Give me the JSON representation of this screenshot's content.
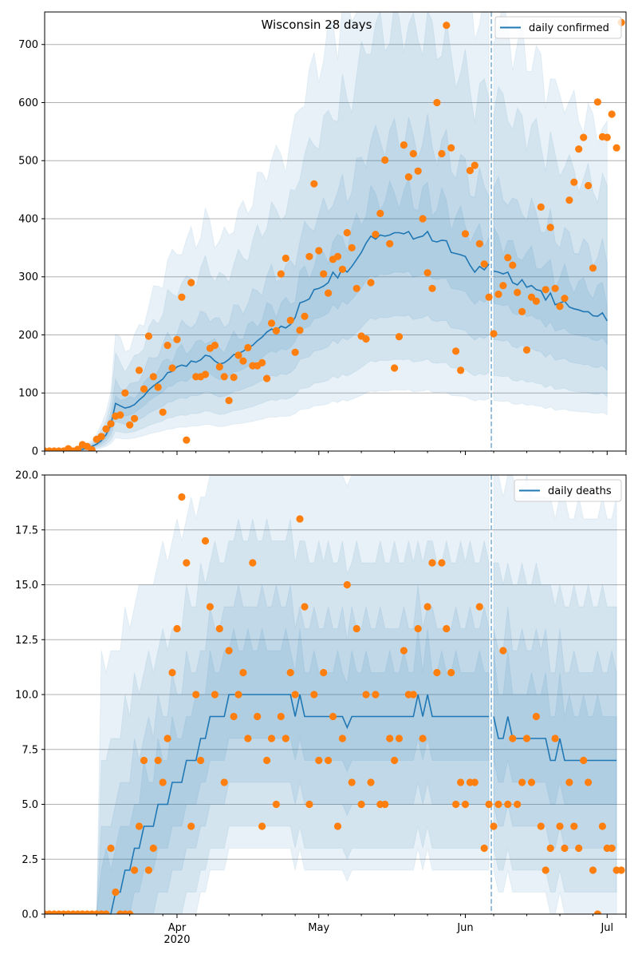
{
  "chart_data": [
    {
      "type": "line",
      "title": "Wisconsin 28 days",
      "legend": [
        "daily confirmed"
      ],
      "legend_position": "top-right",
      "xlabel": "",
      "ylabel": "",
      "ylim": [
        0,
        756
      ],
      "yticks": [
        0,
        100,
        200,
        300,
        400,
        500,
        600,
        700
      ],
      "ytick_labels": [
        "0",
        "100",
        "200",
        "300",
        "400",
        "500",
        "600",
        "700"
      ],
      "grid": "y",
      "start_date": "2020-03-04",
      "forecast_start_day": 95,
      "observed": [
        0,
        0,
        0,
        0,
        0,
        4,
        0,
        3,
        11,
        8,
        2,
        20,
        25,
        38,
        47,
        60,
        62,
        100,
        45,
        56,
        139,
        107,
        198,
        128,
        110,
        67,
        182,
        143,
        192,
        265,
        19,
        290,
        128,
        128,
        132,
        177,
        182,
        145,
        128,
        87,
        127,
        165,
        155,
        178,
        147,
        147,
        152,
        125,
        220,
        207,
        305,
        332,
        225,
        170,
        208,
        232,
        335,
        460,
        345,
        305,
        272,
        330,
        335,
        313,
        376,
        350,
        280,
        198,
        193,
        290,
        373,
        409,
        501,
        357,
        143,
        197,
        527,
        472,
        512,
        482,
        400,
        307,
        280,
        600,
        512,
        733,
        522,
        172,
        139,
        374,
        483,
        492,
        357,
        322,
        265,
        202,
        270,
        285,
        333,
        320,
        273,
        240,
        174,
        265,
        258,
        420,
        278,
        385,
        280,
        249,
        263,
        432,
        463,
        520,
        540,
        457,
        315,
        601,
        541,
        540,
        580,
        522,
        738
      ],
      "median": [
        2,
        1,
        0,
        0,
        0,
        1,
        1,
        2,
        3,
        5,
        8,
        12,
        18,
        28,
        45,
        82,
        78,
        74,
        76,
        80,
        88,
        95,
        105,
        112,
        118,
        124,
        135,
        137,
        145,
        148,
        146,
        155,
        153,
        157,
        165,
        163,
        155,
        150,
        152,
        158,
        166,
        168,
        172,
        178,
        182,
        190,
        196,
        205,
        210,
        207,
        215,
        212,
        218,
        230,
        255,
        258,
        262,
        278,
        280,
        284,
        290,
        308,
        298,
        315,
        308,
        318,
        330,
        342,
        358,
        370,
        365,
        372,
        370,
        372,
        376,
        376,
        374,
        378,
        365,
        368,
        370,
        378,
        362,
        360,
        363,
        362,
        342,
        340,
        338,
        335,
        320,
        308,
        318,
        312,
        322,
        310,
        308,
        305,
        308,
        290,
        286,
        295,
        282,
        285,
        278,
        276,
        260,
        272,
        252,
        255,
        258,
        248,
        245,
        243,
        240,
        240,
        233,
        232,
        238,
        224
      ],
      "bands": [
        {
          "name": "inner",
          "lo_factor": 0.82,
          "hi_factor": 1.18
        },
        {
          "name": "mid",
          "lo_factor": 0.62,
          "hi_factor": 1.45
        },
        {
          "name": "outer",
          "lo_factor": 0.42,
          "hi_factor": 1.95
        },
        {
          "name": "outermost",
          "lo_factor": 0.28,
          "hi_factor": 2.4
        }
      ],
      "x_major_ticks": [
        "Apr\n2020",
        "May",
        "Jun",
        "Jul"
      ]
    },
    {
      "type": "line",
      "title": "",
      "legend": [
        "daily deaths"
      ],
      "legend_position": "top-right",
      "xlabel": "",
      "ylabel": "",
      "ylim": [
        0,
        20
      ],
      "yticks": [
        0,
        2.5,
        5,
        7.5,
        10,
        12.5,
        15,
        17.5,
        20
      ],
      "ytick_labels": [
        "0.0",
        "2.5",
        "5.0",
        "7.5",
        "10.0",
        "12.5",
        "15.0",
        "17.5",
        "20.0"
      ],
      "grid": "y",
      "start_date": "2020-03-04",
      "forecast_start_day": 95,
      "observed": [
        0,
        0,
        0,
        0,
        0,
        0,
        0,
        0,
        0,
        0,
        0,
        0,
        0,
        0,
        3,
        1,
        0,
        0,
        0,
        2,
        4,
        7,
        2,
        3,
        7,
        6,
        8,
        11,
        13,
        19,
        16,
        4,
        10,
        7,
        17,
        14,
        10,
        13,
        6,
        12,
        9,
        10,
        11,
        8,
        16,
        9,
        4,
        7,
        8,
        5,
        9,
        8,
        11,
        10,
        18,
        14,
        5,
        10,
        7,
        11,
        7,
        9,
        4,
        8,
        15,
        6,
        13,
        5,
        10,
        6,
        10,
        5,
        5,
        8,
        7,
        8,
        12,
        10,
        10,
        13,
        8,
        14,
        16,
        11,
        16,
        13,
        11,
        5,
        6,
        5,
        6,
        6,
        14,
        3,
        5,
        4,
        5,
        12,
        5,
        8,
        5,
        6,
        8,
        6,
        9,
        4,
        2,
        3,
        8,
        4,
        3,
        6,
        4,
        3,
        7,
        6,
        2,
        0,
        4,
        3,
        3,
        2,
        2
      ],
      "median": [
        0,
        0,
        0,
        0,
        0,
        0,
        0,
        0,
        0,
        0,
        0,
        0,
        0,
        0,
        0,
        1,
        1,
        2,
        2,
        3,
        3,
        4,
        4,
        4,
        5,
        5,
        5,
        6,
        6,
        6,
        7,
        7,
        7,
        8,
        8,
        9,
        9,
        9,
        9,
        10,
        10,
        10,
        10,
        10,
        10,
        10,
        10,
        10,
        10,
        10,
        10,
        10,
        10,
        9,
        10,
        9,
        9,
        9,
        9,
        9,
        9,
        9,
        9,
        9,
        8.5,
        9,
        9,
        9,
        9,
        9,
        9,
        9,
        9,
        9,
        9,
        9,
        9,
        9,
        9,
        10,
        9,
        10,
        9,
        9,
        9,
        9,
        9,
        9,
        9,
        9,
        9,
        9,
        9,
        9,
        9,
        9,
        8,
        8,
        9,
        8,
        8,
        8,
        8,
        8,
        8,
        8,
        8,
        7,
        7,
        8,
        7,
        7,
        7,
        7,
        7,
        7,
        7,
        7,
        7,
        7,
        7,
        7
      ],
      "bands": [
        {
          "name": "inner",
          "lo_offset": -2,
          "hi_offset": 2
        },
        {
          "name": "mid",
          "lo_offset": -4,
          "hi_offset": 4
        },
        {
          "name": "outer",
          "lo_offset": -6,
          "hi_offset": 7
        },
        {
          "name": "outermost",
          "lo_offset": -7,
          "hi_offset": 11
        }
      ],
      "x_major_ticks": [
        "Apr\n2020",
        "May",
        "Jun",
        "Jul"
      ]
    }
  ],
  "colors": {
    "line": "#1f77b4",
    "dots": "#ff7f0e",
    "band": "#1f77b4",
    "grid": "#b0b0b0",
    "forecast_line": "#7fb1d8"
  }
}
